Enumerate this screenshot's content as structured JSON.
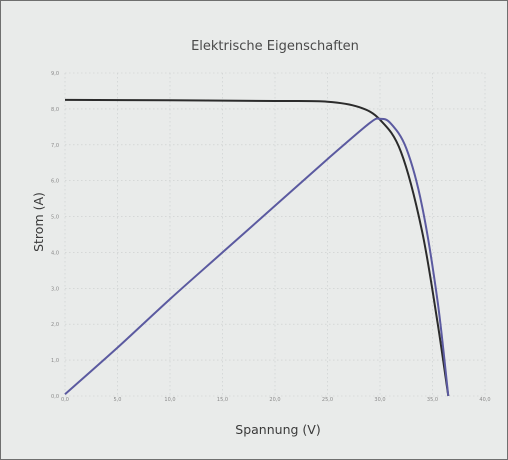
{
  "chart_data": {
    "type": "line",
    "title": "Elektrische Eigenschaften",
    "xlabel": "Spannung (V)",
    "ylabel": "Strom (A)",
    "xlim": [
      0,
      40
    ],
    "ylim": [
      0,
      9
    ],
    "xticks": [
      "0,0",
      "5,0",
      "10,0",
      "15,0",
      "20,0",
      "25,0",
      "30,0",
      "35,0",
      "40,0"
    ],
    "yticks": [
      "0,0",
      "1,0",
      "2,0",
      "3,0",
      "4,0",
      "5,0",
      "6,0",
      "7,0",
      "8,0",
      "9,0"
    ],
    "grid": true,
    "series": [
      {
        "color": "#2b2b2b",
        "points": [
          [
            0,
            8.25
          ],
          [
            10,
            8.24
          ],
          [
            20,
            8.22
          ],
          [
            25,
            8.2
          ],
          [
            28,
            8.05
          ],
          [
            30,
            7.7
          ],
          [
            32,
            6.8
          ],
          [
            34,
            4.6
          ],
          [
            35.5,
            2.0
          ],
          [
            36.5,
            0
          ]
        ]
      },
      {
        "color": "#5b5aa0",
        "points": [
          [
            0,
            0.05
          ],
          [
            5,
            1.35
          ],
          [
            10,
            2.7
          ],
          [
            15,
            4.0
          ],
          [
            20,
            5.3
          ],
          [
            25,
            6.6
          ],
          [
            29,
            7.6
          ],
          [
            30,
            7.72
          ],
          [
            31,
            7.6
          ],
          [
            32.5,
            6.9
          ],
          [
            34,
            5.3
          ],
          [
            35.5,
            2.6
          ],
          [
            36.5,
            0
          ]
        ]
      }
    ]
  }
}
